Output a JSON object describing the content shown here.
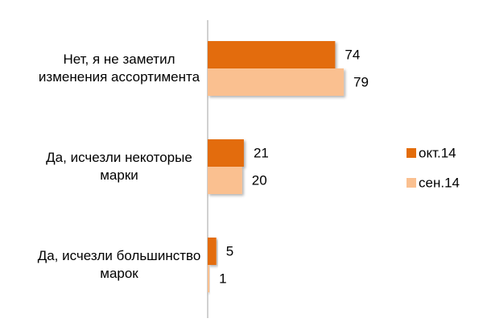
{
  "chart_data": {
    "type": "bar",
    "orientation": "horizontal",
    "categories": [
      "Нет, я не заметил изменения ассортимента",
      "Да, исчезли некоторые марки",
      "Да, исчезли большинство марок"
    ],
    "series": [
      {
        "name": "окт.14",
        "color": "#e36c0a",
        "values": [
          74,
          21,
          5
        ]
      },
      {
        "name": "сен.14",
        "color": "#fac090",
        "values": [
          79,
          20,
          1
        ]
      }
    ],
    "legend": "right"
  }
}
